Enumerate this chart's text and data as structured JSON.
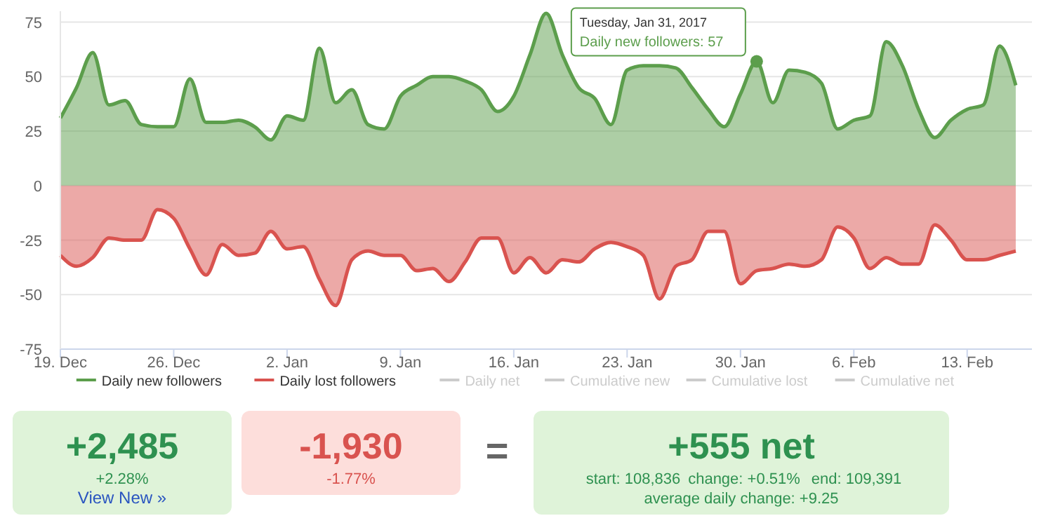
{
  "chart_data": {
    "type": "area",
    "x": [
      "2016-12-19",
      "2016-12-20",
      "2016-12-21",
      "2016-12-22",
      "2016-12-23",
      "2016-12-24",
      "2016-12-25",
      "2016-12-26",
      "2016-12-27",
      "2016-12-28",
      "2016-12-29",
      "2016-12-30",
      "2016-12-31",
      "2017-01-01",
      "2017-01-02",
      "2017-01-03",
      "2017-01-04",
      "2017-01-05",
      "2017-01-06",
      "2017-01-07",
      "2017-01-08",
      "2017-01-09",
      "2017-01-10",
      "2017-01-11",
      "2017-01-12",
      "2017-01-13",
      "2017-01-14",
      "2017-01-15",
      "2017-01-16",
      "2017-01-17",
      "2017-01-18",
      "2017-01-19",
      "2017-01-20",
      "2017-01-21",
      "2017-01-22",
      "2017-01-23",
      "2017-01-24",
      "2017-01-25",
      "2017-01-26",
      "2017-01-27",
      "2017-01-28",
      "2017-01-29",
      "2017-01-30",
      "2017-01-31",
      "2017-02-01",
      "2017-02-02",
      "2017-02-03",
      "2017-02-04",
      "2017-02-05",
      "2017-02-06",
      "2017-02-07",
      "2017-02-08",
      "2017-02-09",
      "2017-02-10",
      "2017-02-11",
      "2017-02-12",
      "2017-02-13",
      "2017-02-14",
      "2017-02-15",
      "2017-02-16"
    ],
    "series": [
      {
        "name": "Daily new followers",
        "color": "#5c9e4c",
        "values": [
          31,
          45,
          61,
          37,
          39,
          28,
          27,
          27,
          49,
          29,
          29,
          30,
          27,
          21,
          32,
          30,
          63,
          38,
          44,
          28,
          26,
          41,
          46,
          50,
          50,
          48,
          44,
          34,
          41,
          60,
          79,
          60,
          45,
          40,
          28,
          53,
          55,
          55,
          54,
          45,
          35,
          27,
          42,
          57,
          38,
          53,
          52,
          47,
          26,
          30,
          32,
          66,
          55,
          35,
          22,
          30,
          35,
          37,
          64,
          46
        ]
      },
      {
        "name": "Daily lost followers",
        "color": "#d9534f",
        "values": [
          -32,
          -37,
          -33,
          -24,
          -25,
          -25,
          -11,
          -15,
          -29,
          -41,
          -27,
          -32,
          -31,
          -21,
          -29,
          -28,
          -43,
          -55,
          -34,
          -30,
          -32,
          -32,
          -39,
          -38,
          -44,
          -35,
          -24,
          -24,
          -40,
          -33,
          -40,
          -34,
          -35,
          -29,
          -26,
          -28,
          -32,
          -52,
          -37,
          -34,
          -21,
          -21,
          -45,
          -39,
          -38,
          -36,
          -37,
          -34,
          -19,
          -24,
          -38,
          -33,
          -36,
          -36,
          -18,
          -25,
          -34,
          -34,
          -32,
          -30
        ]
      },
      {
        "name": "Daily net",
        "color": "#cccccc",
        "values": [
          null,
          null,
          null,
          null,
          null,
          null,
          null,
          null,
          null,
          null,
          null,
          null,
          null,
          null,
          null,
          null,
          null,
          null,
          null,
          null,
          null,
          null,
          null,
          null,
          null,
          null,
          null,
          null,
          null,
          null,
          null,
          null,
          null,
          null,
          null,
          null,
          null,
          null,
          null,
          null,
          null,
          null,
          null,
          null,
          null,
          null,
          null,
          null,
          null,
          null,
          null,
          null,
          null,
          null,
          null,
          null,
          null,
          null,
          null,
          null
        ]
      },
      {
        "name": "Cumulative new",
        "color": "#cccccc",
        "values": [
          null,
          null,
          null,
          null,
          null,
          null,
          null,
          null,
          null,
          null,
          null,
          null,
          null,
          null,
          null,
          null,
          null,
          null,
          null,
          null,
          null,
          null,
          null,
          null,
          null,
          null,
          null,
          null,
          null,
          null,
          null,
          null,
          null,
          null,
          null,
          null,
          null,
          null,
          null,
          null,
          null,
          null,
          null,
          null,
          null,
          null,
          null,
          null,
          null,
          null,
          null,
          null,
          null,
          null,
          null,
          null,
          null,
          null,
          null,
          null
        ]
      },
      {
        "name": "Cumulative lost",
        "color": "#cccccc",
        "values": [
          null,
          null,
          null,
          null,
          null,
          null,
          null,
          null,
          null,
          null,
          null,
          null,
          null,
          null,
          null,
          null,
          null,
          null,
          null,
          null,
          null,
          null,
          null,
          null,
          null,
          null,
          null,
          null,
          null,
          null,
          null,
          null,
          null,
          null,
          null,
          null,
          null,
          null,
          null,
          null,
          null,
          null,
          null,
          null,
          null,
          null,
          null,
          null,
          null,
          null,
          null,
          null,
          null,
          null,
          null,
          null,
          null,
          null,
          null,
          null
        ]
      },
      {
        "name": "Cumulative net",
        "color": "#cccccc",
        "values": [
          null,
          null,
          null,
          null,
          null,
          null,
          null,
          null,
          null,
          null,
          null,
          null,
          null,
          null,
          null,
          null,
          null,
          null,
          null,
          null,
          null,
          null,
          null,
          null,
          null,
          null,
          null,
          null,
          null,
          null,
          null,
          null,
          null,
          null,
          null,
          null,
          null,
          null,
          null,
          null,
          null,
          null,
          null,
          null,
          null,
          null,
          null,
          null,
          null,
          null,
          null,
          null,
          null,
          null,
          null,
          null,
          null,
          null,
          null,
          null
        ]
      }
    ],
    "xlim": [
      "2016-12-19",
      "2017-02-17"
    ],
    "xticks": [
      {
        "value": "2016-12-19",
        "label": "19. Dec"
      },
      {
        "value": "2016-12-26",
        "label": "26. Dec"
      },
      {
        "value": "2017-01-02",
        "label": "2. Jan"
      },
      {
        "value": "2017-01-09",
        "label": "9. Jan"
      },
      {
        "value": "2017-01-16",
        "label": "16. Jan"
      },
      {
        "value": "2017-01-23",
        "label": "23. Jan"
      },
      {
        "value": "2017-01-30",
        "label": "30. Jan"
      },
      {
        "value": "2017-02-06",
        "label": "6. Feb"
      },
      {
        "value": "2017-02-13",
        "label": "13. Feb"
      }
    ],
    "ylim": [
      -75,
      80
    ],
    "yticks": [
      -75,
      -50,
      -25,
      0,
      25,
      50,
      75
    ],
    "grid": "y",
    "legend": "bottom",
    "annotations": [
      {
        "text": "Tuesday, Jan 31, 2017\nDaily new followers: 57",
        "x": "2017-01-31",
        "y": 57
      },
      "+2,485",
      "+2.28%",
      "View New »",
      "-1,930",
      "-1.77%",
      "=",
      "+555 net",
      "start: 108,836",
      "change: +0.51%",
      "end: 109,391",
      "average daily change: +9.25"
    ]
  }
}
